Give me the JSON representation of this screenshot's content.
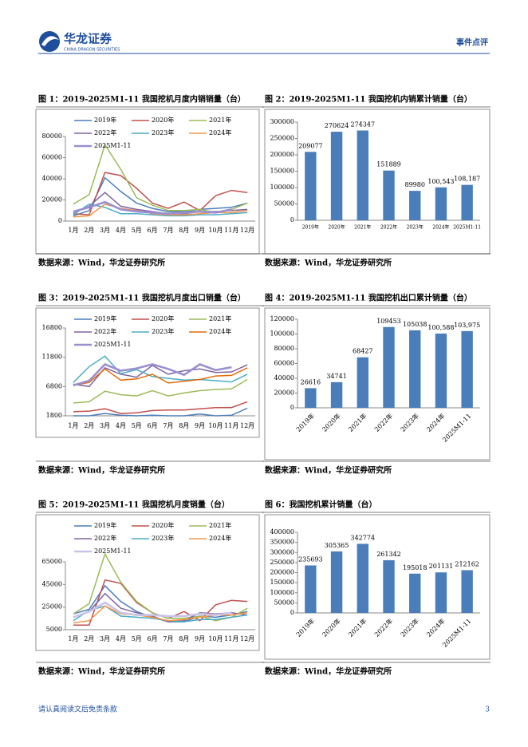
{
  "header": {
    "brand": "华龙证券",
    "brand_en": "CHINA DRAGON SECURITIES",
    "section": "事件点评"
  },
  "chart_data": [
    {
      "type": "line",
      "title": "图 1：2019-2025M1-11 我国挖机月度内销销量（台）",
      "source": "数据来源：Wind，华龙证券研究所",
      "categories": [
        "1月",
        "2月",
        "3月",
        "4月",
        "5月",
        "6月",
        "7月",
        "8月",
        "9月",
        "10月",
        "11月",
        "12月"
      ],
      "ylim": [
        0,
        80000
      ],
      "yticks": [
        0,
        20000,
        40000,
        60000,
        80000
      ],
      "series": [
        {
          "name": "2019年",
          "color": "#4a7ebb",
          "values": [
            5000,
            10000,
            41000,
            28000,
            17000,
            12000,
            9000,
            9000,
            11000,
            12000,
            13000,
            17000
          ]
        },
        {
          "name": "2020年",
          "color": "#c0504d",
          "values": [
            7000,
            6000,
            46000,
            43000,
            31000,
            17000,
            12000,
            18000,
            10000,
            24000,
            29000,
            27000
          ]
        },
        {
          "name": "2021年",
          "color": "#9bbb59",
          "values": [
            16000,
            25000,
            72000,
            49000,
            22000,
            15000,
            10000,
            10000,
            11000,
            8000,
            11000,
            17000
          ]
        },
        {
          "name": "2022年",
          "color": "#8064a2",
          "values": [
            8000,
            14000,
            27000,
            14000,
            11000,
            9000,
            7000,
            7000,
            9000,
            9000,
            10000,
            11000
          ]
        },
        {
          "name": "2023年",
          "color": "#4bacc6",
          "values": [
            6000,
            16000,
            13000,
            7000,
            7000,
            6000,
            5000,
            5000,
            6000,
            6000,
            7000,
            8000
          ]
        },
        {
          "name": "2024年",
          "color": "#f79646",
          "values": [
            4000,
            5000,
            16000,
            12000,
            10000,
            7000,
            6000,
            6000,
            7000,
            8000,
            8000,
            10000
          ]
        },
        {
          "name": "2025M1-11",
          "color": "#9a8fd0",
          "values": [
            9000,
            13000,
            18000,
            11000,
            9000,
            8000,
            7000,
            8000,
            9000,
            8000,
            11000,
            null
          ]
        }
      ]
    },
    {
      "type": "bar",
      "title": "图 2：2019-2025M1-11 我国挖机内销累计销量（台）",
      "source": "数据来源：Wind，华龙证券研究所",
      "categories": [
        "2019年",
        "2020年",
        "2021年",
        "2022年",
        "2023年",
        "2024年",
        "2025M1-11"
      ],
      "values": [
        209077,
        270624,
        274347,
        151889,
        89980,
        100543,
        108187
      ],
      "value_labels": [
        "209077",
        "270624",
        "274347",
        "151889",
        "89980",
        "100,543",
        "108,187"
      ],
      "color": "#4a7ebb",
      "ylim": [
        0,
        300000
      ],
      "yticks": [
        0,
        50000,
        100000,
        150000,
        200000,
        250000,
        300000
      ]
    },
    {
      "type": "line",
      "title": "图 3：2019-2025M1-11 我国挖机月度出口销量（台）",
      "source": "数据来源：Wind，华龙证券研究所",
      "categories": [
        "1月",
        "2月",
        "3月",
        "4月",
        "5月",
        "6月",
        "7月",
        "8月",
        "9月",
        "10月",
        "11月",
        "12月"
      ],
      "ylim": [
        1800,
        16800
      ],
      "yticks": [
        1800,
        6800,
        11800,
        16800
      ],
      "series": [
        {
          "name": "2019年",
          "color": "#4a7ebb",
          "values": [
            1800,
            1800,
            2200,
            1900,
            1800,
            1900,
            1800,
            1800,
            2100,
            1800,
            1900,
            3100
          ]
        },
        {
          "name": "2020年",
          "color": "#c0504d",
          "values": [
            2500,
            2600,
            3000,
            2200,
            2300,
            2700,
            2800,
            2800,
            3000,
            3200,
            3200,
            4200
          ]
        },
        {
          "name": "2021年",
          "color": "#9bbb59",
          "values": [
            4000,
            4200,
            6000,
            5400,
            5200,
            6100,
            5200,
            5700,
            6100,
            6300,
            6400,
            8000
          ]
        },
        {
          "name": "2022年",
          "color": "#8064a2",
          "values": [
            7200,
            6800,
            10000,
            8900,
            8400,
            10400,
            8900,
            9500,
            9800,
            9200,
            9300,
            10500
          ]
        },
        {
          "name": "2023年",
          "color": "#4bacc6",
          "values": [
            7500,
            10200,
            12000,
            9000,
            9700,
            8500,
            8200,
            7900,
            8000,
            7800,
            7600,
            8900
          ]
        },
        {
          "name": "2024年",
          "color": "#e46c0a",
          "values": [
            7000,
            7500,
            9800,
            7900,
            8100,
            8900,
            7400,
            7700,
            8000,
            8600,
            8700,
            10000
          ]
        },
        {
          "name": "2025M1-11",
          "color": "#9a8fd0",
          "values": [
            7000,
            7800,
            10600,
            9500,
            9900,
            10600,
            9800,
            8800,
            10600,
            9600,
            10100,
            null
          ]
        }
      ]
    },
    {
      "type": "bar",
      "title": "图 4：2019-2025M1-11 我国挖机出口累计销量（台）",
      "source": "数据来源：Wind，华龙证券研究所",
      "categories": [
        "2019年",
        "2020年",
        "2021年",
        "2022年",
        "2023年",
        "2024年",
        "2025M1-11"
      ],
      "values": [
        26616,
        34741,
        68427,
        109453,
        105038,
        100588,
        103975
      ],
      "value_labels": [
        "26616",
        "34741",
        "68427",
        "109453",
        "105038",
        "100,588",
        "103,975"
      ],
      "color": "#4a7ebb",
      "ylim": [
        0,
        120000
      ],
      "yticks": [
        0,
        20000,
        40000,
        60000,
        80000,
        100000,
        120000
      ]
    },
    {
      "type": "line",
      "title": "图 5：2019-2025M1-11 我国挖机月度销量（台）",
      "source": "数据来源：Wind，华龙证券研究所",
      "categories": [
        "1月",
        "2月",
        "3月",
        "4月",
        "5月",
        "6月",
        "7月",
        "8月",
        "9月",
        "10月",
        "11月",
        "12月"
      ],
      "ylim": [
        5000,
        65000
      ],
      "yticks": [
        5000,
        25000,
        45000,
        65000
      ],
      "series": [
        {
          "name": "2019年",
          "color": "#4a7ebb",
          "values": [
            19000,
            23000,
            44000,
            30000,
            21000,
            16000,
            12000,
            12000,
            17000,
            16000,
            18000,
            21000
          ]
        },
        {
          "name": "2020年",
          "color": "#c0504d",
          "values": [
            9000,
            9000,
            49000,
            46000,
            29000,
            20000,
            15000,
            21000,
            13000,
            27000,
            31000,
            30000
          ]
        },
        {
          "name": "2021年",
          "color": "#9bbb59",
          "values": [
            19000,
            28000,
            72000,
            47000,
            30000,
            20000,
            15000,
            15000,
            17000,
            13000,
            16000,
            24000
          ]
        },
        {
          "name": "2022年",
          "color": "#8064a2",
          "values": [
            16000,
            21000,
            37000,
            24000,
            20000,
            17000,
            12000,
            13000,
            20000,
            19000,
            20000,
            18000
          ]
        },
        {
          "name": "2023年",
          "color": "#4bacc6",
          "values": [
            13000,
            22000,
            26000,
            17000,
            16000,
            15000,
            13000,
            12000,
            14000,
            14000,
            16000,
            18000
          ]
        },
        {
          "name": "2024年",
          "color": "#f79646",
          "values": [
            11000,
            13000,
            26000,
            19000,
            18000,
            16000,
            13000,
            14000,
            16000,
            18000,
            18000,
            20000
          ]
        },
        {
          "name": "2025M1-11",
          "color": "#c9c3e8",
          "values": [
            16000,
            21000,
            29000,
            20000,
            18000,
            18000,
            17000,
            17000,
            19000,
            18000,
            20000,
            null
          ]
        }
      ]
    },
    {
      "type": "bar",
      "title": "图 6：我国挖机累计销量（台）",
      "source": "数据来源：Wind，华龙证券研究所",
      "categories": [
        "2019年",
        "2020年",
        "2021年",
        "2022年",
        "2023年",
        "2024年",
        "2025M1-11"
      ],
      "values": [
        235693,
        305365,
        342774,
        261342,
        195018,
        201131,
        212162
      ],
      "value_labels": [
        "235693",
        "305365",
        "342774",
        "261342",
        "195018",
        "201131",
        "212162"
      ],
      "color": "#4a7ebb",
      "ylim": [
        0,
        400000
      ],
      "yticks": [
        0,
        50000,
        100000,
        150000,
        200000,
        250000,
        300000,
        350000,
        400000
      ]
    }
  ],
  "footer": {
    "disclaimer": "请认真阅读文后免责条款",
    "page": 3
  }
}
